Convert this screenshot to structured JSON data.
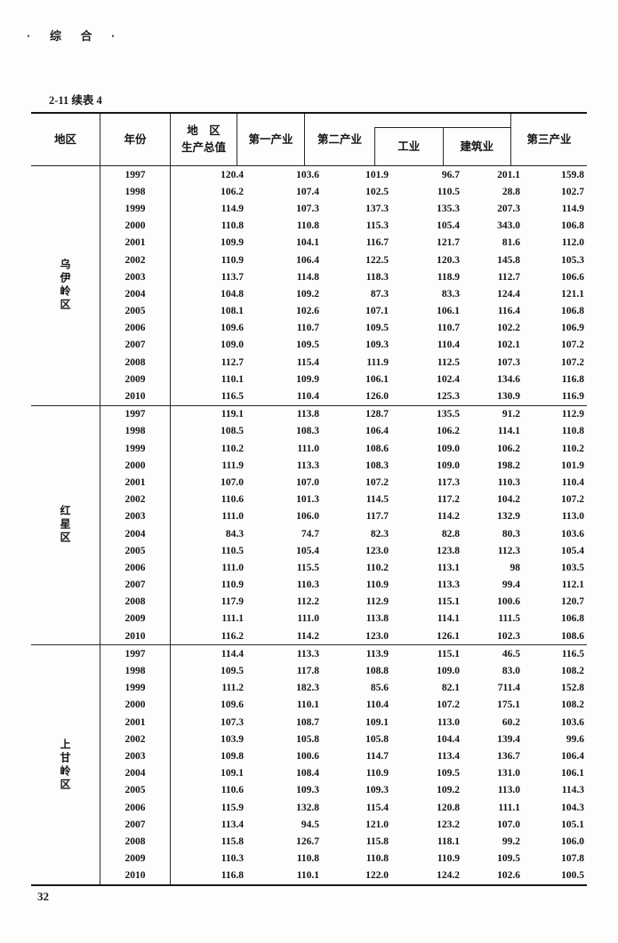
{
  "page": {
    "section_title": "· 综 合 ·",
    "table_caption": "2-11  续表 4",
    "page_number": "32"
  },
  "table": {
    "headers": {
      "region": "地区",
      "year": "年份",
      "gdp_line1": "地　区",
      "gdp_line2": "生产总值",
      "primary": "第一产业",
      "secondary": "第二产业",
      "industry": "工业",
      "construction": "建筑业",
      "tertiary": "第三产业"
    },
    "blocks": [
      {
        "region": "乌伊岭区",
        "rows": [
          [
            "1997",
            "120.4",
            "103.6",
            "101.9",
            "96.7",
            "201.1",
            "159.8"
          ],
          [
            "1998",
            "106.2",
            "107.4",
            "102.5",
            "110.5",
            "28.8",
            "102.7"
          ],
          [
            "1999",
            "114.9",
            "107.3",
            "137.3",
            "135.3",
            "207.3",
            "114.9"
          ],
          [
            "2000",
            "110.8",
            "110.8",
            "115.3",
            "105.4",
            "343.0",
            "106.8"
          ],
          [
            "2001",
            "109.9",
            "104.1",
            "116.7",
            "121.7",
            "81.6",
            "112.0"
          ],
          [
            "2002",
            "110.9",
            "106.4",
            "122.5",
            "120.3",
            "145.8",
            "105.3"
          ],
          [
            "2003",
            "113.7",
            "114.8",
            "118.3",
            "118.9",
            "112.7",
            "106.6"
          ],
          [
            "2004",
            "104.8",
            "109.2",
            "87.3",
            "83.3",
            "124.4",
            "121.1"
          ],
          [
            "2005",
            "108.1",
            "102.6",
            "107.1",
            "106.1",
            "116.4",
            "106.8"
          ],
          [
            "2006",
            "109.6",
            "110.7",
            "109.5",
            "110.7",
            "102.2",
            "106.9"
          ],
          [
            "2007",
            "109.0",
            "109.5",
            "109.3",
            "110.4",
            "102.1",
            "107.2"
          ],
          [
            "2008",
            "112.7",
            "115.4",
            "111.9",
            "112.5",
            "107.3",
            "107.2"
          ],
          [
            "2009",
            "110.1",
            "109.9",
            "106.1",
            "102.4",
            "134.6",
            "116.8"
          ],
          [
            "2010",
            "116.5",
            "110.4",
            "126.0",
            "125.3",
            "130.9",
            "116.9"
          ]
        ]
      },
      {
        "region": "红星区",
        "rows": [
          [
            "1997",
            "119.1",
            "113.8",
            "128.7",
            "135.5",
            "91.2",
            "112.9"
          ],
          [
            "1998",
            "108.5",
            "108.3",
            "106.4",
            "106.2",
            "114.1",
            "110.8"
          ],
          [
            "1999",
            "110.2",
            "111.0",
            "108.6",
            "109.0",
            "106.2",
            "110.2"
          ],
          [
            "2000",
            "111.9",
            "113.3",
            "108.3",
            "109.0",
            "198.2",
            "101.9"
          ],
          [
            "2001",
            "107.0",
            "107.0",
            "107.2",
            "117.3",
            "110.3",
            "110.4"
          ],
          [
            "2002",
            "110.6",
            "101.3",
            "114.5",
            "117.2",
            "104.2",
            "107.2"
          ],
          [
            "2003",
            "111.0",
            "106.0",
            "117.7",
            "114.2",
            "132.9",
            "113.0"
          ],
          [
            "2004",
            "84.3",
            "74.7",
            "82.3",
            "82.8",
            "80.3",
            "103.6"
          ],
          [
            "2005",
            "110.5",
            "105.4",
            "123.0",
            "123.8",
            "112.3",
            "105.4"
          ],
          [
            "2006",
            "111.0",
            "115.5",
            "110.2",
            "113.1",
            "98",
            "103.5"
          ],
          [
            "2007",
            "110.9",
            "110.3",
            "110.9",
            "113.3",
            "99.4",
            "112.1"
          ],
          [
            "2008",
            "117.9",
            "112.2",
            "112.9",
            "115.1",
            "100.6",
            "120.7"
          ],
          [
            "2009",
            "111.1",
            "111.0",
            "113.8",
            "114.1",
            "111.5",
            "106.8"
          ],
          [
            "2010",
            "116.2",
            "114.2",
            "123.0",
            "126.1",
            "102.3",
            "108.6"
          ]
        ]
      },
      {
        "region": "上甘岭区",
        "rows": [
          [
            "1997",
            "114.4",
            "113.3",
            "113.9",
            "115.1",
            "46.5",
            "116.5"
          ],
          [
            "1998",
            "109.5",
            "117.8",
            "108.8",
            "109.0",
            "83.0",
            "108.2"
          ],
          [
            "1999",
            "111.2",
            "182.3",
            "85.6",
            "82.1",
            "711.4",
            "152.8"
          ],
          [
            "2000",
            "109.6",
            "110.1",
            "110.4",
            "107.2",
            "175.1",
            "108.2"
          ],
          [
            "2001",
            "107.3",
            "108.7",
            "109.1",
            "113.0",
            "60.2",
            "103.6"
          ],
          [
            "2002",
            "103.9",
            "105.8",
            "105.8",
            "104.4",
            "139.4",
            "99.6"
          ],
          [
            "2003",
            "109.8",
            "100.6",
            "114.7",
            "113.4",
            "136.7",
            "106.4"
          ],
          [
            "2004",
            "109.1",
            "108.4",
            "110.9",
            "109.5",
            "131.0",
            "106.1"
          ],
          [
            "2005",
            "110.6",
            "109.3",
            "109.3",
            "109.2",
            "113.0",
            "114.3"
          ],
          [
            "2006",
            "115.9",
            "132.8",
            "115.4",
            "120.8",
            "111.1",
            "104.3"
          ],
          [
            "2007",
            "113.4",
            "94.5",
            "121.0",
            "123.2",
            "107.0",
            "105.1"
          ],
          [
            "2008",
            "115.8",
            "126.7",
            "115.8",
            "118.1",
            "99.2",
            "106.0"
          ],
          [
            "2009",
            "110.3",
            "110.8",
            "110.8",
            "110.9",
            "109.5",
            "107.8"
          ],
          [
            "2010",
            "116.8",
            "110.1",
            "122.0",
            "124.2",
            "102.6",
            "100.5"
          ]
        ]
      }
    ]
  }
}
